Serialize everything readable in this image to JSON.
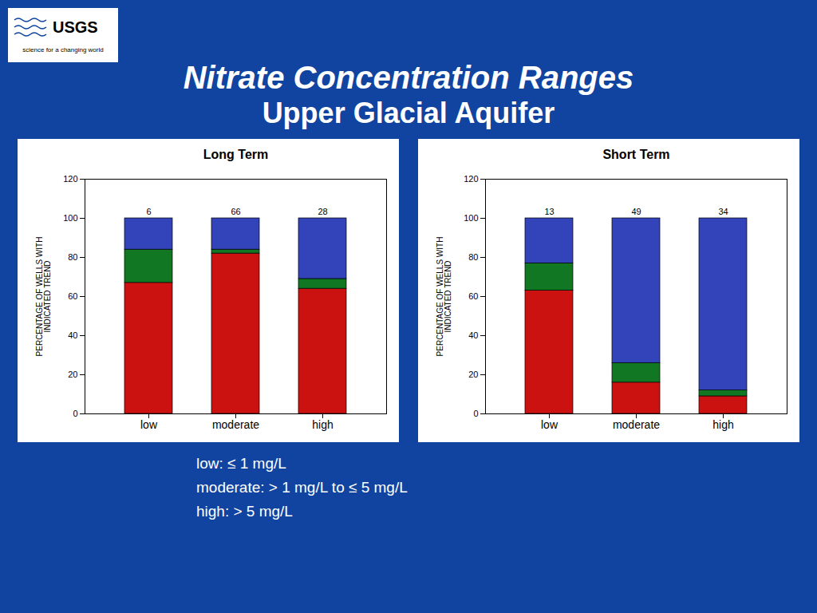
{
  "title": "Nitrate Concentration Ranges",
  "subtitle": "Upper Glacial Aquifer",
  "logo": [
    "USGS",
    "science for a changing world"
  ],
  "annotations": [
    "low:  ≤ 1 mg/L",
    "moderate:  > 1 mg/L to ≤ 5 mg/L",
    "high:  > 5 mg/L"
  ],
  "chart_data": [
    {
      "type": "bar",
      "title": "Long Term",
      "stacked": true,
      "grid": false,
      "categories": [
        "low",
        "moderate",
        "high"
      ],
      "y_label": "PERCENTAGE OF WELLS WITH\nINDICATED TREND",
      "ylim": [
        0,
        120
      ],
      "yticks": [
        0,
        20,
        40,
        60,
        80,
        100,
        120
      ],
      "series": [
        {
          "color": "#cc1111",
          "values": [
            67,
            82,
            64
          ]
        },
        {
          "color": "#117722",
          "values": [
            17,
            2,
            5
          ]
        },
        {
          "color": "#3344bb",
          "values": [
            16,
            16,
            31
          ]
        }
      ],
      "n_labels": [
        6,
        66,
        28
      ]
    },
    {
      "type": "bar",
      "title": "Short Term",
      "stacked": true,
      "grid": false,
      "categories": [
        "low",
        "moderate",
        "high"
      ],
      "y_label": "PERCENTAGE OF WELLS WITH\nINDICATED TREND",
      "ylim": [
        0,
        120
      ],
      "yticks": [
        0,
        20,
        40,
        60,
        80,
        100,
        120
      ],
      "series": [
        {
          "color": "#cc1111",
          "values": [
            63,
            16,
            9
          ]
        },
        {
          "color": "#117722",
          "values": [
            14,
            10,
            3
          ]
        },
        {
          "color": "#3344bb",
          "values": [
            23,
            74,
            88
          ]
        }
      ],
      "n_labels": [
        13,
        49,
        34
      ]
    }
  ]
}
